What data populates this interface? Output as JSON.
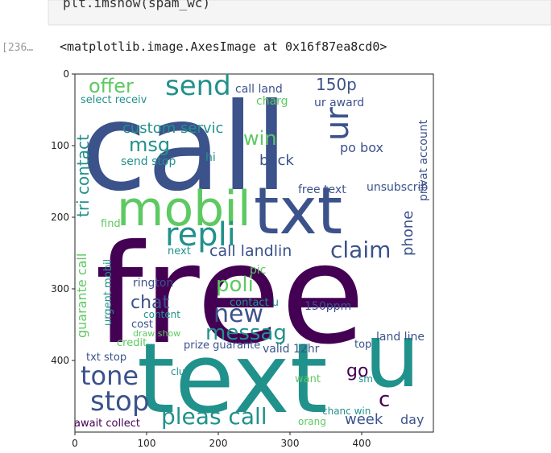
{
  "cell": {
    "code": "plt.imshow(spam_wc)",
    "prompt": "[236…",
    "output": "<matplotlib.image.AxesImage at 0x16f87ea8cd0>"
  },
  "image_axes": {
    "xlim": [
      0,
      500
    ],
    "ylim": [
      500,
      0
    ],
    "xticks": [
      0,
      100,
      200,
      300,
      400
    ],
    "yticks": [
      0,
      100,
      200,
      300,
      400
    ]
  },
  "words": [
    "call",
    "free",
    "text",
    "txt",
    "mobil",
    "u",
    "send",
    "offer",
    "150p",
    "repli",
    "claim",
    "call landlin",
    "new",
    "messag",
    "tone",
    "stop",
    "pleas call",
    "week",
    "day",
    "chat",
    "poli",
    "win",
    "back",
    "msg",
    "custom servic",
    "send stop",
    "hi",
    "go",
    "c",
    "free text",
    "po box",
    "rington",
    "land line",
    "valid 12hr",
    "prize guarante",
    "club",
    "await collect",
    "orang",
    "want",
    "150ppm",
    "contact u",
    "select receiv",
    "charg",
    "ur award",
    "call land",
    "find",
    "next",
    "pic",
    "content",
    "cost",
    "credit",
    "draw show",
    "top",
    "txt stop",
    "chanc win",
    "unsubscrib",
    "sm",
    "ur",
    "tri contact",
    "phone",
    "privat account",
    "guarante call",
    "urgent mobil"
  ]
}
